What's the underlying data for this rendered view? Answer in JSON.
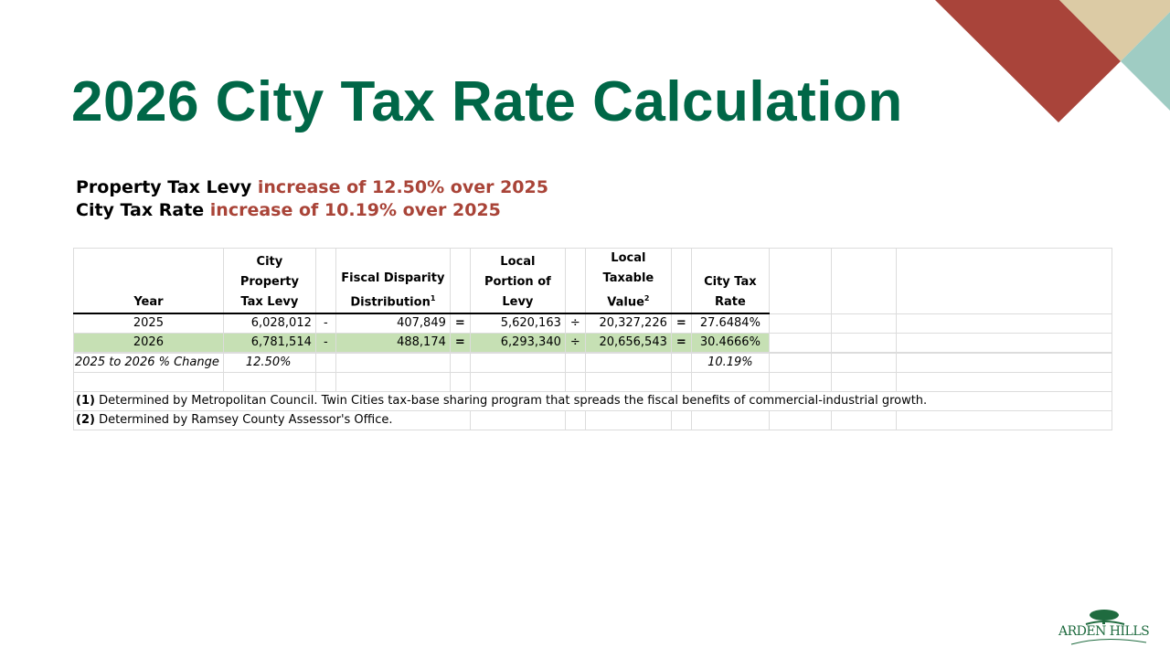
{
  "title": "2026 City Tax Rate Calculation",
  "summary": [
    {
      "label": "Property Tax Levy",
      "highlight": "increase of 12.50% over 2025"
    },
    {
      "label": "City Tax Rate",
      "highlight": "increase of 10.19% over 2025"
    }
  ],
  "table": {
    "headers": {
      "year": "Year",
      "levy": "City Property Tax Levy",
      "fiscal": "Fiscal Disparity Distribution",
      "fiscal_sup": "1",
      "local": "Local Portion of Levy",
      "taxable": "Local Taxable Value",
      "taxable_sup": "2",
      "rate": "City Tax Rate"
    },
    "operators": {
      "minus": "-",
      "equals": "=",
      "divide": "÷"
    },
    "rows": [
      {
        "year": "2025",
        "levy": "6,028,012",
        "fiscal": "407,849",
        "local": "5,620,163",
        "taxable": "20,327,226",
        "rate": "27.6484%"
      },
      {
        "year": "2026",
        "levy": "6,781,514",
        "fiscal": "488,174",
        "local": "6,293,340",
        "taxable": "20,656,543",
        "rate": "30.4666%"
      }
    ],
    "change": {
      "label": "2025 to 2026 % Change",
      "levy": "12.50%",
      "rate": "10.19%"
    },
    "notes": [
      {
        "num": "(1)",
        "text": " Determined by Metropolitan Council. Twin Cities tax-base sharing program that spreads the fiscal benefits of commercial-industrial growth."
      },
      {
        "num": "(2)",
        "text": " Determined by Ramsey County Assessor's Office."
      }
    ]
  },
  "logo": "Arden Hills",
  "colors": {
    "title": "#006747",
    "highlight": "#a94438",
    "row_highlight": "#c6e0b4"
  }
}
